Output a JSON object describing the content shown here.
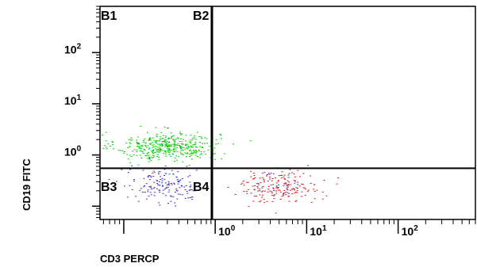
{
  "chart_data": {
    "type": "scatter",
    "title": "",
    "xlabel": "CD3 PERCP",
    "ylabel": "CD19 FITC",
    "x_scale": "log",
    "y_scale": "log",
    "xlim": [
      0.055,
      700
    ],
    "ylim": [
      0.055,
      800
    ],
    "x_ticks": [
      {
        "value": 1,
        "base": "10",
        "exp": "0"
      },
      {
        "value": 10,
        "base": "10",
        "exp": "1"
      },
      {
        "value": 100,
        "base": "10",
        "exp": "2"
      }
    ],
    "y_ticks": [
      {
        "value": 1,
        "base": "10",
        "exp": "0"
      },
      {
        "value": 10,
        "base": "10",
        "exp": "1"
      },
      {
        "value": 100,
        "base": "10",
        "exp": "2"
      }
    ],
    "gate_x": 0.92,
    "gate_y": 0.55,
    "quadrants": [
      "B1",
      "B2",
      "B3",
      "B4"
    ],
    "grid": false,
    "legend": "none",
    "colors": {
      "green": "#00cc00",
      "blue": "#3333cc",
      "red": "#e01010",
      "purple": "#7a2a7a",
      "axis": "#000000"
    },
    "populations": [
      {
        "color": "green",
        "center_x": 0.3,
        "center_y": 1.5,
        "spread_x": 0.28,
        "spread_y": 0.14,
        "count": 420
      },
      {
        "color": "blue",
        "center_x": 0.28,
        "center_y": 0.25,
        "spread_x": 0.26,
        "spread_y": 0.18,
        "count": 140
      },
      {
        "color": "red",
        "center_x": 5.0,
        "center_y": 0.25,
        "spread_x": 0.22,
        "spread_y": 0.16,
        "count": 170
      },
      {
        "color": "blue",
        "center_x": 5.0,
        "center_y": 0.27,
        "spread_x": 0.12,
        "spread_y": 0.12,
        "count": 25
      },
      {
        "color": "purple",
        "center_x": 0.32,
        "center_y": 0.3,
        "spread_x": 0.2,
        "spread_y": 0.15,
        "count": 30
      }
    ]
  }
}
